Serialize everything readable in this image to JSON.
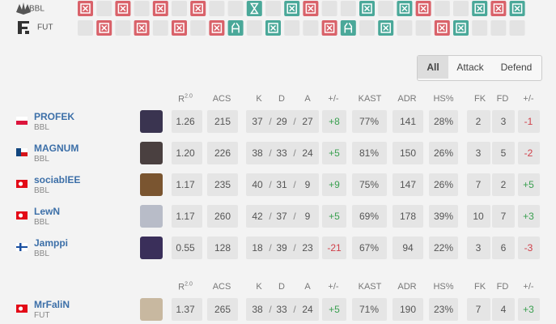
{
  "rounds": {
    "teams": [
      "BBL",
      "FUT"
    ]
  },
  "filters": [
    "All",
    "Attack",
    "Defend"
  ],
  "stats": {
    "header": [
      "R",
      "ACS",
      "K",
      "D",
      "A",
      "+/-",
      "KAST",
      "ADR",
      "HS%",
      "FK",
      "FD",
      "+/-"
    ],
    "rating_sup": "2.0",
    "kda_separator": "/",
    "tables": [
      {
        "players": [
          {
            "name": "PROFEK",
            "team": "BBL",
            "stats": [
              "1.26",
              "215",
              "37",
              "29",
              "27",
              "+8",
              "77%",
              "141",
              "28%",
              "2",
              "3",
              "-1"
            ]
          },
          {
            "name": "MAGNUM",
            "team": "BBL",
            "stats": [
              "1.20",
              "226",
              "38",
              "33",
              "24",
              "+5",
              "81%",
              "150",
              "26%",
              "3",
              "5",
              "-2"
            ]
          },
          {
            "name": "sociablEE",
            "team": "BBL",
            "stats": [
              "1.17",
              "235",
              "40",
              "31",
              "9",
              "+9",
              "75%",
              "147",
              "26%",
              "7",
              "2",
              "+5"
            ]
          },
          {
            "name": "LewN",
            "team": "BBL",
            "stats": [
              "1.17",
              "260",
              "42",
              "37",
              "9",
              "+5",
              "69%",
              "178",
              "39%",
              "10",
              "7",
              "+3"
            ]
          },
          {
            "name": "Jamppi",
            "team": "BBL",
            "stats": [
              "0.55",
              "128",
              "18",
              "39",
              "23",
              "-21",
              "67%",
              "94",
              "22%",
              "3",
              "6",
              "-3"
            ]
          }
        ]
      },
      {
        "players": [
          {
            "name": "MrFaliN",
            "team": "FUT",
            "stats": [
              "1.37",
              "265",
              "38",
              "33",
              "24",
              "+5",
              "71%",
              "190",
              "23%",
              "7",
              "4",
              "+3"
            ]
          }
        ]
      }
    ]
  }
}
